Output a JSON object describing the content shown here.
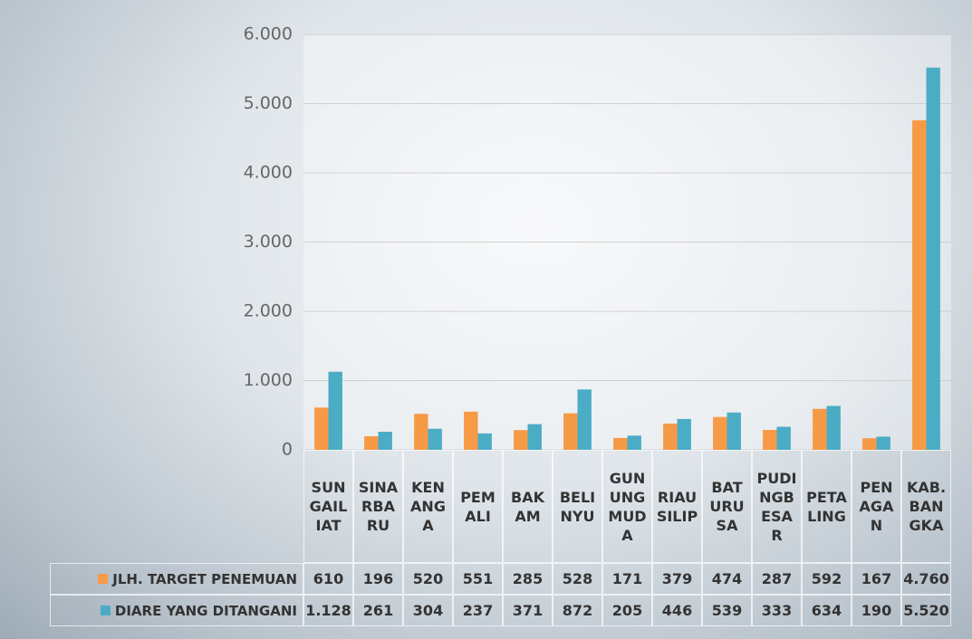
{
  "chart_data": {
    "type": "bar",
    "categories": [
      "SUNGAILIAT",
      "SINARBARU",
      "KENANGA",
      "PEMALI",
      "BAKAM",
      "BELINYU",
      "GUNUNGMUDA",
      "RIAU SILIP",
      "BATURUSA",
      "PUDINGBESAR",
      "PETALING",
      "PENAGAN",
      "KAB. BANGKA"
    ],
    "series": [
      {
        "name": "JLH. TARGET PENEMUAN",
        "color": "#f79a46",
        "values": [
          610,
          196,
          520,
          551,
          285,
          528,
          171,
          379,
          474,
          287,
          592,
          167,
          4760
        ],
        "value_labels": [
          "610",
          "196",
          "520",
          "551",
          "285",
          "528",
          "171",
          "379",
          "474",
          "287",
          "592",
          "167",
          "4.760"
        ]
      },
      {
        "name": "DIARE YANG DITANGANI",
        "color": "#4bacc6",
        "values": [
          1128,
          261,
          304,
          237,
          371,
          872,
          205,
          446,
          539,
          333,
          634,
          190,
          5520
        ],
        "value_labels": [
          "1.128",
          "261",
          "304",
          "237",
          "371",
          "872",
          "205",
          "446",
          "539",
          "333",
          "634",
          "190",
          "5.520"
        ]
      }
    ],
    "ylim": [
      0,
      6000
    ],
    "yticks": [
      0,
      {
        "value": 1000,
        "label": "1.000"
      },
      {
        "value": 2000,
        "label": "2.000"
      },
      {
        "value": 3000,
        "label": "3.000"
      },
      {
        "value": 4000,
        "label": "4.000"
      },
      {
        "value": 5000,
        "label": "5.000"
      },
      {
        "value": 6000,
        "label": "6.000"
      }
    ],
    "grid": true
  }
}
